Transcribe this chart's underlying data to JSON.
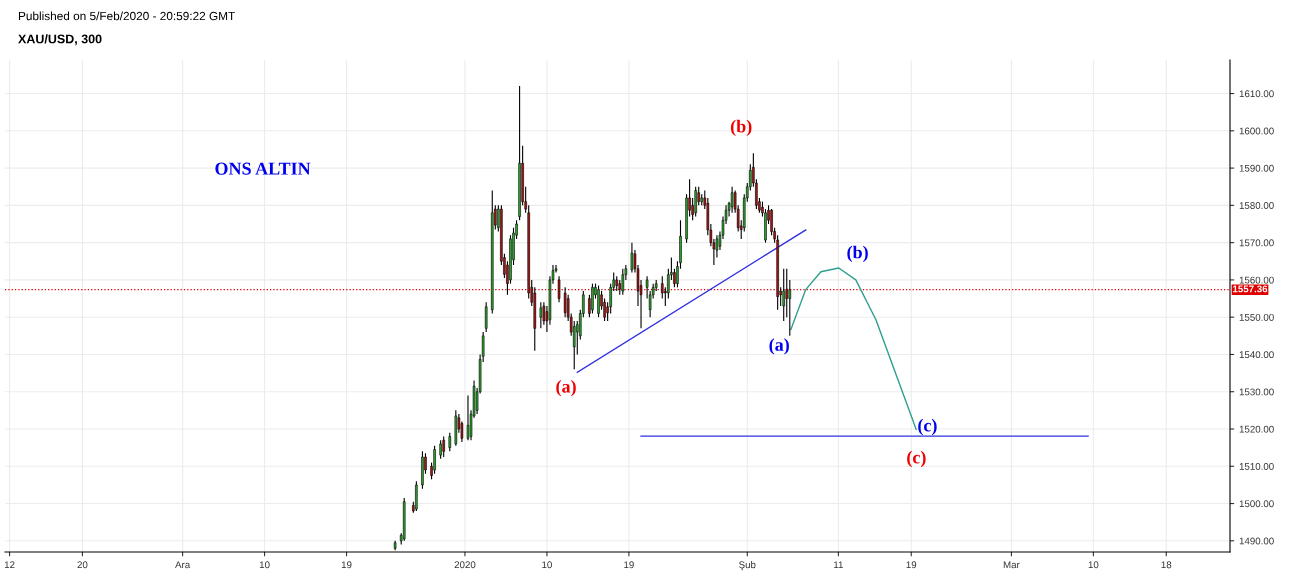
{
  "chart_data": {
    "type": "candlestick",
    "title": "XAU/USD, 300",
    "annotations": [
      "Published on 5/Feb/2020 - 20:59:22 GMT",
      "ONS ALTIN",
      "(b)",
      "(a)",
      "(c)",
      "(a)",
      "(b)",
      "(c)"
    ],
    "series": [
      {
        "x": [
          "2019-12-24T08:00",
          "2019-12-25T00:00",
          "2019-12-25T08:00",
          "2019-12-26T08:00",
          "2019-12-26T16:00",
          "2019-12-27T08:00",
          "2019-12-27T16:00",
          "2019-12-28T08:00",
          "2019-12-28T16:00",
          "2019-12-29T08:00",
          "2019-12-29T16:00",
          "2019-12-30T08:00",
          "2019-12-31T00:00",
          "2019-12-31T08:00",
          "2019-12-31T16:00",
          "2020-01-01T08:00",
          "2020-01-01T16:00",
          "2020-01-02T00:00",
          "2020-01-02T08:00",
          "2020-01-02T16:00",
          "2020-01-03T00:00",
          "2020-01-03T08:00",
          "2020-01-04T00:00",
          "2020-01-04T08:00",
          "2020-01-04T16:00",
          "2020-01-05T00:00",
          "2020-01-05T08:00",
          "2020-01-05T16:00",
          "2020-01-06T00:00",
          "2020-01-06T08:00",
          "2020-01-06T16:00",
          "2020-01-07T00:00",
          "2020-01-07T08:00",
          "2020-01-07T16:00",
          "2020-01-08T00:00",
          "2020-01-08T08:00",
          "2020-01-08T16:00",
          "2020-01-09T08:00",
          "2020-01-09T16:00",
          "2020-01-10T00:00",
          "2020-01-10T08:00",
          "2020-01-10T16:00",
          "2020-01-11T00:00",
          "2020-01-11T08:00",
          "2020-01-12T00:00",
          "2020-01-12T08:00",
          "2020-01-12T16:00",
          "2020-01-13T00:00",
          "2020-01-13T08:00",
          "2020-01-13T16:00",
          "2020-01-14T00:00",
          "2020-01-14T16:00",
          "2020-01-15T00:00",
          "2020-01-15T08:00",
          "2020-01-15T16:00",
          "2020-01-16T00:00",
          "2020-01-16T08:00",
          "2020-01-16T16:00",
          "2020-01-17T00:00",
          "2020-01-17T08:00",
          "2020-01-17T16:00",
          "2020-01-18T00:00",
          "2020-01-18T08:00",
          "2020-01-18T16:00",
          "2020-01-19T08:00",
          "2020-01-19T16:00",
          "2020-01-20T00:00",
          "2020-01-20T08:00",
          "2020-01-21T00:00",
          "2020-01-21T08:00",
          "2020-01-21T16:00",
          "2020-01-22T00:00",
          "2020-01-22T16:00",
          "2020-01-23T00:00",
          "2020-01-23T08:00",
          "2020-01-23T16:00",
          "2020-01-24T00:00",
          "2020-01-24T08:00",
          "2020-01-24T16:00",
          "2020-01-25T08:00",
          "2020-01-25T16:00",
          "2020-01-26T00:00",
          "2020-01-26T08:00",
          "2020-01-26T16:00",
          "2020-01-27T00:00",
          "2020-01-27T08:00",
          "2020-01-27T16:00",
          "2020-01-28T00:00",
          "2020-01-28T08:00",
          "2020-01-28T16:00",
          "2020-01-29T00:00",
          "2020-01-29T08:00",
          "2020-01-29T16:00",
          "2020-01-30T00:00",
          "2020-01-30T08:00",
          "2020-01-30T16:00",
          "2020-01-31T00:00",
          "2020-01-31T08:00",
          "2020-01-31T16:00",
          "2020-02-01T00:00",
          "2020-02-01T08:00",
          "2020-02-01T16:00",
          "2020-02-02T00:00",
          "2020-02-02T08:00",
          "2020-02-02T16:00",
          "2020-02-03T00:00",
          "2020-02-03T08:00",
          "2020-02-03T16:00",
          "2020-02-04T00:00",
          "2020-02-04T08:00",
          "2020-02-04T16:00",
          "2020-02-05T00:00",
          "2020-02-05T08:00",
          "2020-02-05T16:00"
        ],
        "ohlc": [
          [
            1488,
            1490,
            1487.5,
            1489.5
          ],
          [
            1490,
            1492,
            1489,
            1491.5
          ],
          [
            1490.5,
            1501.5,
            1490,
            1500.5
          ],
          [
            1499.5,
            1500.5,
            1497.5,
            1498
          ],
          [
            1498.5,
            1506,
            1498,
            1505
          ],
          [
            1505,
            1514,
            1504,
            1512.5
          ],
          [
            1512.5,
            1513.5,
            1508,
            1509
          ],
          [
            1510,
            1511,
            1506.5,
            1507.5
          ],
          [
            1509,
            1515.5,
            1508,
            1514.5
          ],
          [
            1513,
            1517,
            1512,
            1516
          ],
          [
            1517,
            1518,
            1512.5,
            1514
          ],
          [
            1515,
            1519,
            1514,
            1518
          ],
          [
            1516,
            1525,
            1515.5,
            1523.5
          ],
          [
            1523,
            1524,
            1519,
            1520
          ],
          [
            1521.5,
            1522,
            1516.5,
            1517.5
          ],
          [
            1517.5,
            1529,
            1517,
            1521
          ],
          [
            1518,
            1525,
            1517,
            1524
          ],
          [
            1523.5,
            1533,
            1523,
            1531.5
          ],
          [
            1525,
            1531,
            1524,
            1530
          ],
          [
            1530,
            1540,
            1529.5,
            1538.7
          ],
          [
            1539.5,
            1546,
            1538,
            1545
          ],
          [
            1547,
            1554,
            1546,
            1552.8
          ],
          [
            1552,
            1584,
            1551,
            1578
          ],
          [
            1579,
            1580,
            1573.5,
            1574.7
          ],
          [
            1574,
            1580,
            1573,
            1579
          ],
          [
            1579,
            1580,
            1564,
            1565
          ],
          [
            1566,
            1567,
            1560.5,
            1561.5
          ],
          [
            1564,
            1565,
            1556,
            1559
          ],
          [
            1560,
            1572,
            1559,
            1571
          ],
          [
            1565.4,
            1574,
            1564,
            1572.6
          ],
          [
            1572,
            1576,
            1571,
            1575
          ],
          [
            1577,
            1612,
            1576,
            1591.3
          ],
          [
            1591.3,
            1596,
            1580,
            1581
          ],
          [
            1581,
            1585,
            1578,
            1579
          ],
          [
            1578,
            1580,
            1555,
            1556.5
          ],
          [
            1558,
            1560,
            1553,
            1554
          ],
          [
            1556.5,
            1558,
            1541,
            1547
          ],
          [
            1550,
            1554,
            1547,
            1552.5
          ],
          [
            1553,
            1554,
            1548,
            1549
          ],
          [
            1551.5,
            1553,
            1546,
            1549
          ],
          [
            1549.3,
            1561,
            1548,
            1560
          ],
          [
            1560,
            1564,
            1559,
            1562.5
          ],
          [
            1562.5,
            1564,
            1562,
            1563
          ],
          [
            1560,
            1561,
            1554,
            1555
          ],
          [
            1556.5,
            1558,
            1550,
            1551.2
          ],
          [
            1555,
            1556,
            1549,
            1550
          ],
          [
            1550,
            1551,
            1545,
            1546
          ],
          [
            1542,
            1549,
            1536,
            1547.5
          ],
          [
            1546,
            1549,
            1540,
            1548
          ],
          [
            1545,
            1552,
            1544,
            1551
          ],
          [
            1551,
            1557,
            1550,
            1556
          ],
          [
            1555,
            1556,
            1550,
            1551
          ],
          [
            1552,
            1559,
            1551,
            1558
          ],
          [
            1556,
            1559,
            1555,
            1558
          ],
          [
            1551,
            1558.5,
            1550,
            1557.4
          ],
          [
            1556,
            1557,
            1552,
            1553
          ],
          [
            1554,
            1555,
            1549,
            1550
          ],
          [
            1552.8,
            1554,
            1549,
            1551.2
          ],
          [
            1552.8,
            1559,
            1551,
            1558
          ],
          [
            1558,
            1562,
            1557,
            1560
          ],
          [
            1560,
            1561,
            1557,
            1558.5
          ],
          [
            1559,
            1560,
            1556,
            1557.5
          ],
          [
            1557,
            1563,
            1556,
            1561.4
          ],
          [
            1561.4,
            1564,
            1560,
            1563
          ],
          [
            1562.7,
            1570,
            1562,
            1567.2
          ],
          [
            1567,
            1568,
            1562,
            1563
          ],
          [
            1563,
            1564,
            1553,
            1557
          ],
          [
            1558.5,
            1560,
            1547,
            1556
          ],
          [
            1558,
            1561,
            1555,
            1560
          ],
          [
            1552,
            1557,
            1550,
            1556
          ],
          [
            1556,
            1559,
            1555,
            1558
          ],
          [
            1558,
            1560,
            1557,
            1559
          ],
          [
            1559,
            1561,
            1555,
            1556.5
          ],
          [
            1557,
            1558,
            1553,
            1556.5
          ],
          [
            1556.5,
            1563,
            1555,
            1561.4
          ],
          [
            1561.4,
            1566,
            1560,
            1562
          ],
          [
            1562,
            1563,
            1558,
            1559
          ],
          [
            1559,
            1565,
            1558,
            1563.6
          ],
          [
            1564.6,
            1576,
            1563,
            1571.7
          ],
          [
            1571,
            1583,
            1570,
            1582
          ],
          [
            1582,
            1587,
            1577,
            1578.7
          ],
          [
            1580,
            1582,
            1576,
            1577.5
          ],
          [
            1578,
            1585,
            1577,
            1584
          ],
          [
            1583.4,
            1585,
            1580,
            1581
          ],
          [
            1581,
            1583,
            1580,
            1582
          ],
          [
            1582,
            1584,
            1579,
            1580
          ],
          [
            1580.6,
            1582,
            1572,
            1573.4
          ],
          [
            1573.4,
            1575,
            1569,
            1570
          ],
          [
            1570,
            1571,
            1564,
            1568.3
          ],
          [
            1568,
            1572,
            1566,
            1571
          ],
          [
            1569,
            1573,
            1568,
            1572
          ],
          [
            1572,
            1577,
            1571,
            1576
          ],
          [
            1576,
            1580,
            1575,
            1578.7
          ],
          [
            1578.7,
            1581,
            1577,
            1580.5
          ],
          [
            1579.6,
            1585,
            1578,
            1583.4
          ],
          [
            1583.4,
            1584,
            1578,
            1579
          ],
          [
            1579,
            1580,
            1573,
            1574
          ],
          [
            1574.5,
            1576,
            1571,
            1573.5
          ],
          [
            1574,
            1583,
            1573,
            1582
          ],
          [
            1582,
            1586,
            1581,
            1585
          ],
          [
            1585,
            1591,
            1584,
            1589.4
          ],
          [
            1590.2,
            1594,
            1585,
            1586
          ],
          [
            1586,
            1587,
            1579,
            1580
          ],
          [
            1581,
            1582,
            1578,
            1578.7
          ],
          [
            1579.5,
            1581,
            1577,
            1578
          ],
          [
            1570.7,
            1579,
            1570,
            1578
          ],
          [
            1578.7,
            1580,
            1575,
            1576
          ],
          [
            1578.7,
            1579,
            1572,
            1573
          ],
          [
            1573,
            1574,
            1570,
            1571
          ],
          [
            1570.7,
            1572,
            1552,
            1555.5
          ],
          [
            1557,
            1558,
            1553,
            1556
          ],
          [
            1553,
            1563,
            1549,
            1557
          ],
          [
            1557.5,
            1563,
            1550,
            1555
          ],
          [
            1555,
            1560,
            1545,
            1557.36
          ]
        ]
      },
      {
        "type": "line",
        "color": "#3030e0",
        "x": [
          "2020-01-13T08:00",
          "2020-02-07T10:00"
        ],
        "values": [
          1535.2,
          1573.4
        ]
      },
      {
        "type": "line",
        "color": "#3030e0",
        "x": [
          "2020-01-20T08:00",
          "2020-03-09T10:00"
        ],
        "values": [
          1518.1,
          1518.1
        ]
      },
      {
        "type": "line",
        "color": "#2e9e8e",
        "x": [
          "2020-02-05T19:00",
          "2020-02-07T10:00",
          "2020-02-09T02:00",
          "2020-02-11T01:00",
          "2020-02-12T22:00",
          "2020-02-15T03:00",
          "2020-02-17T08:00",
          "2020-02-19T13:00"
        ],
        "values": [
          1546.7,
          1557.4,
          1562.2,
          1563.2,
          1560,
          1549.3,
          1534.6,
          1519.9
        ]
      }
    ],
    "ref_lines": [
      {
        "axis": "y",
        "value": 1557.36,
        "label": "1557.36",
        "color": "#dd0000",
        "line_style": "dotted"
      }
    ],
    "xlim": [
      "2019-11-11T12:00",
      "2020-03-25T00:00"
    ],
    "xticks": [
      {
        "value": "2019-11-12",
        "label": "12"
      },
      {
        "value": "2019-11-20",
        "label": "20"
      },
      {
        "value": "2019-12-01",
        "label": "Ara"
      },
      {
        "value": "2019-12-10",
        "label": "10"
      },
      {
        "value": "2019-12-19",
        "label": "19"
      },
      {
        "value": "2020-01-01",
        "label": "2020"
      },
      {
        "value": "2020-01-10",
        "label": "10"
      },
      {
        "value": "2020-01-19",
        "label": "19"
      },
      {
        "value": "2020-02-01",
        "label": "Şub"
      },
      {
        "value": "2020-02-11",
        "label": "11"
      },
      {
        "value": "2020-02-19",
        "label": "19"
      },
      {
        "value": "2020-03-01",
        "label": "Mar"
      },
      {
        "value": "2020-03-10",
        "label": "10"
      },
      {
        "value": "2020-03-18",
        "label": "18"
      }
    ],
    "ylim": [
      1487,
      1619
    ],
    "yticks": [
      {
        "value": 1490,
        "label": "1490.00"
      },
      {
        "value": 1500,
        "label": "1500.00"
      },
      {
        "value": 1510,
        "label": "1510.00"
      },
      {
        "value": 1520,
        "label": "1520.00"
      },
      {
        "value": 1530,
        "label": "1530.00"
      },
      {
        "value": 1540,
        "label": "1540.00"
      },
      {
        "value": 1550,
        "label": "1550.00"
      },
      {
        "value": 1560,
        "label": "1560.00"
      },
      {
        "value": 1570,
        "label": "1570.00"
      },
      {
        "value": 1580,
        "label": "1580.00"
      },
      {
        "value": 1590,
        "label": "1590.00"
      },
      {
        "value": 1600,
        "label": "1600.00"
      },
      {
        "value": 1610,
        "label": "1610.00"
      }
    ],
    "grid": true
  }
}
